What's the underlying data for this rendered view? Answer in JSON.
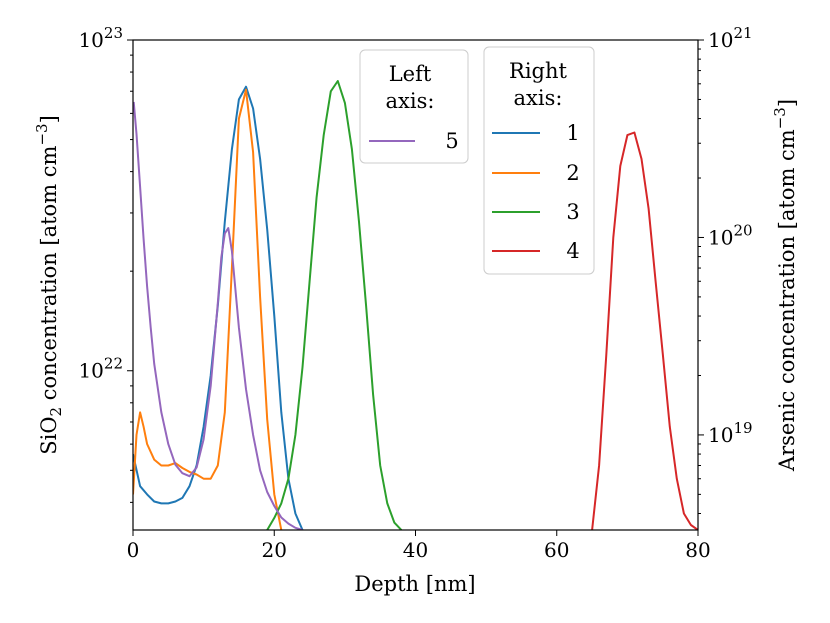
{
  "chart_data": {
    "type": "line",
    "xlabel": "Depth [nm]",
    "ylabel_left_main": "SiO",
    "ylabel_left_sub": "2",
    "ylabel_left_rest": " concentration [atom cm",
    "ylabel_left_sup": "−3",
    "ylabel_left_close": "]",
    "ylabel_right": "Arsenic concentration [atom cm",
    "ylabel_right_sup": "−3",
    "ylabel_right_close": "]",
    "xlim": [
      0,
      80
    ],
    "x_ticks": [
      0,
      20,
      40,
      60,
      80
    ],
    "y_left_scale": "log",
    "y_left_lim": [
      3.3e+21,
      1e+23
    ],
    "y_left_ticks": [
      {
        "value": 1e+22,
        "base": "10",
        "exp": "22"
      },
      {
        "value": 1e+23,
        "base": "10",
        "exp": "23"
      }
    ],
    "y_right_scale": "log",
    "y_right_lim": [
      3.3e+18,
      1e+21
    ],
    "y_right_ticks": [
      {
        "value": 1e+19,
        "base": "10",
        "exp": "19"
      },
      {
        "value": 1e+20,
        "base": "10",
        "exp": "20"
      },
      {
        "value": 1e+21,
        "base": "10",
        "exp": "21"
      }
    ],
    "legend_left": {
      "title_line1": "Left",
      "title_line2": "axis:",
      "placement": "top-center"
    },
    "legend_right": {
      "title_line1": "Right",
      "title_line2": "axis:",
      "placement": "top-center-right"
    },
    "series": [
      {
        "name": "1",
        "axis": "right",
        "color": "#1f77b4",
        "x": [
          0,
          1,
          2,
          3,
          4,
          5,
          6,
          7,
          8,
          9,
          10,
          11,
          12,
          13,
          14,
          15,
          16,
          17,
          18,
          19,
          20,
          21,
          22,
          23,
          24
        ],
        "y": [
          8e+18,
          5.5e+18,
          5e+18,
          4.6e+18,
          4.5e+18,
          4.5e+18,
          4.6e+18,
          4.8e+18,
          5.5e+18,
          7e+18,
          1.1e+19,
          2e+19,
          4.5e+19,
          1.2e+20,
          2.8e+20,
          5e+20,
          5.8e+20,
          4.5e+20,
          2.5e+20,
          1.1e+20,
          4e+19,
          1.3e+19,
          6e+18,
          4e+18,
          3.3e+18
        ]
      },
      {
        "name": "2",
        "axis": "right",
        "color": "#ff7f0e",
        "x": [
          0,
          0.5,
          1,
          1.5,
          2,
          3,
          4,
          5,
          6,
          7,
          8,
          9,
          10,
          11,
          12,
          13,
          14,
          15,
          16,
          17,
          18,
          19,
          20,
          21
        ],
        "y": [
          5e+18,
          1e+19,
          1.3e+19,
          1.1e+19,
          9e+18,
          7.5e+18,
          7e+18,
          7e+18,
          7.2e+18,
          6.8e+18,
          6.5e+18,
          6.3e+18,
          6e+18,
          6e+18,
          7e+18,
          1.3e+19,
          7e+19,
          4e+20,
          5.6e+20,
          2.7e+20,
          5e+19,
          1.2e+19,
          5e+18,
          3.3e+18
        ]
      },
      {
        "name": "3",
        "axis": "right",
        "color": "#2ca02c",
        "x": [
          19,
          20,
          21,
          22,
          23,
          24,
          25,
          26,
          27,
          28,
          29,
          30,
          31,
          32,
          33,
          34,
          35,
          36,
          37,
          38
        ],
        "y": [
          3.3e+18,
          3.8e+18,
          4.5e+18,
          6e+18,
          1e+19,
          2.2e+19,
          6e+19,
          1.6e+20,
          3.3e+20,
          5.5e+20,
          6.2e+20,
          4.8e+20,
          2.8e+20,
          1.2e+20,
          4.5e+19,
          1.6e+19,
          7e+18,
          4.5e+18,
          3.6e+18,
          3.3e+18
        ]
      },
      {
        "name": "4",
        "axis": "right",
        "color": "#d62728",
        "x": [
          65,
          66,
          67,
          68,
          69,
          70,
          71,
          72,
          73,
          74,
          75,
          76,
          77,
          78,
          79,
          80
        ],
        "y": [
          3.3e+18,
          7e+18,
          2.5e+19,
          1e+20,
          2.3e+20,
          3.3e+20,
          3.4e+20,
          2.5e+20,
          1.4e+20,
          6e+19,
          2.6e+19,
          1.1e+19,
          6e+18,
          4e+18,
          3.5e+18,
          3.3e+18
        ]
      },
      {
        "name": "5",
        "axis": "left",
        "color": "#9467bd",
        "x": [
          0.1,
          0.5,
          1,
          1.5,
          2,
          2.5,
          3,
          4,
          5,
          6,
          7,
          8,
          9,
          10,
          11,
          12,
          12.5,
          13,
          13.5,
          14,
          15,
          16,
          17,
          18,
          19,
          20,
          21,
          22,
          23,
          24
        ],
        "y": [
          6.5e+22,
          5.2e+22,
          3.6e+22,
          2.5e+22,
          1.8e+22,
          1.35e+22,
          1.05e+22,
          7.5e+21,
          6e+21,
          5.2e+21,
          4.9e+21,
          4.8e+21,
          5.1e+21,
          6.2e+21,
          9e+21,
          1.6e+22,
          2.2e+22,
          2.6e+22,
          2.7e+22,
          2.3e+22,
          1.35e+22,
          8.8e+21,
          6.4e+21,
          5e+21,
          4.3e+21,
          3.9e+21,
          3.6e+21,
          3.45e+21,
          3.35e+21,
          3.3e+21
        ]
      }
    ],
    "colors": {
      "tab_blue": "#1f77b4",
      "tab_orange": "#ff7f0e",
      "tab_green": "#2ca02c",
      "tab_red": "#d62728",
      "tab_purple": "#9467bd"
    }
  }
}
